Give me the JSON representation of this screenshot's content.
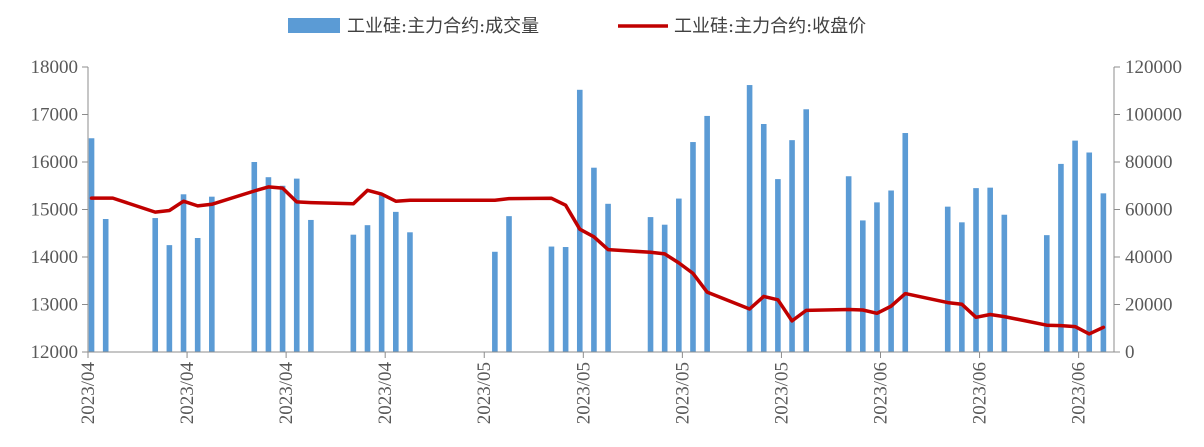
{
  "chart_data": {
    "type": "bar+line",
    "legend": [
      {
        "name": "工业硅:主力合约:成交量",
        "kind": "bar",
        "color": "#5b9bd5"
      },
      {
        "name": "工业硅:主力合约:收盘价",
        "kind": "line",
        "color": "#c00000"
      }
    ],
    "left_axis": {
      "min": 12000,
      "max": 18000,
      "step": 1000,
      "ticks": [
        "12000",
        "13000",
        "14000",
        "15000",
        "16000",
        "17000",
        "18000"
      ]
    },
    "right_axis": {
      "min": 0,
      "max": 120000,
      "step": 20000,
      "ticks": [
        "0",
        "20000",
        "40000",
        "60000",
        "80000",
        "100000",
        "120000"
      ]
    },
    "x_tick_labels": [
      "2023/04",
      "2023/04",
      "2023/04",
      "2023/04",
      "2023/05",
      "2023/05",
      "2023/05",
      "2023/05",
      "2023/06",
      "2023/06",
      "2023/06"
    ],
    "x_tick_indices": [
      0,
      14,
      28,
      42,
      56,
      70,
      84,
      98,
      112,
      126,
      140
    ],
    "n_slots": 145,
    "volume": [
      {
        "i": 0,
        "v": 16500
      },
      {
        "i": 2,
        "v": 14800
      },
      {
        "i": 9,
        "v": 14820
      },
      {
        "i": 11,
        "v": 14250
      },
      {
        "i": 13,
        "v": 15320
      },
      {
        "i": 15,
        "v": 14400
      },
      {
        "i": 17,
        "v": 15270
      },
      {
        "i": 23,
        "v": 16000
      },
      {
        "i": 25,
        "v": 15680
      },
      {
        "i": 27,
        "v": 15500
      },
      {
        "i": 29,
        "v": 15650
      },
      {
        "i": 31,
        "v": 14780
      },
      {
        "i": 37,
        "v": 14470
      },
      {
        "i": 39,
        "v": 14670
      },
      {
        "i": 41,
        "v": 15330
      },
      {
        "i": 43,
        "v": 14950
      },
      {
        "i": 45,
        "v": 14520
      },
      {
        "i": 57,
        "v": 14110
      },
      {
        "i": 59,
        "v": 14860
      },
      {
        "i": 65,
        "v": 14220
      },
      {
        "i": 67,
        "v": 14210
      },
      {
        "i": 69,
        "v": 17520
      },
      {
        "i": 71,
        "v": 15880
      },
      {
        "i": 73,
        "v": 15120
      },
      {
        "i": 79,
        "v": 14840
      },
      {
        "i": 81,
        "v": 14680
      },
      {
        "i": 83,
        "v": 15230
      },
      {
        "i": 85,
        "v": 16420
      },
      {
        "i": 87,
        "v": 16970
      },
      {
        "i": 93,
        "v": 17620
      },
      {
        "i": 95,
        "v": 16800
      },
      {
        "i": 97,
        "v": 15640
      },
      {
        "i": 99,
        "v": 16460
      },
      {
        "i": 101,
        "v": 17110
      },
      {
        "i": 107,
        "v": 15700
      },
      {
        "i": 109,
        "v": 14770
      },
      {
        "i": 111,
        "v": 15150
      },
      {
        "i": 113,
        "v": 15400
      },
      {
        "i": 115,
        "v": 16610
      },
      {
        "i": 121,
        "v": 15060
      },
      {
        "i": 123,
        "v": 14730
      },
      {
        "i": 125,
        "v": 15450
      },
      {
        "i": 127,
        "v": 15460
      },
      {
        "i": 129,
        "v": 14890
      },
      {
        "i": 135,
        "v": 14460
      },
      {
        "i": 137,
        "v": 15960
      },
      {
        "i": 139,
        "v": 16450
      },
      {
        "i": 141,
        "v": 16200
      },
      {
        "i": 143,
        "v": 15340
      }
    ],
    "close_price": [
      {
        "i": 0,
        "v": 64800
      },
      {
        "i": 3,
        "v": 64800
      },
      {
        "i": 9,
        "v": 58900
      },
      {
        "i": 11,
        "v": 59600
      },
      {
        "i": 13,
        "v": 63500
      },
      {
        "i": 15,
        "v": 61500
      },
      {
        "i": 17,
        "v": 62200
      },
      {
        "i": 23,
        "v": 67800
      },
      {
        "i": 25,
        "v": 69500
      },
      {
        "i": 27,
        "v": 69000
      },
      {
        "i": 29,
        "v": 63200
      },
      {
        "i": 31,
        "v": 62900
      },
      {
        "i": 37,
        "v": 62400
      },
      {
        "i": 39,
        "v": 68100
      },
      {
        "i": 41,
        "v": 66500
      },
      {
        "i": 43,
        "v": 63500
      },
      {
        "i": 45,
        "v": 63900
      },
      {
        "i": 57,
        "v": 63900
      },
      {
        "i": 59,
        "v": 64600
      },
      {
        "i": 65,
        "v": 64700
      },
      {
        "i": 67,
        "v": 61800
      },
      {
        "i": 69,
        "v": 51700
      },
      {
        "i": 71,
        "v": 48500
      },
      {
        "i": 73,
        "v": 43100
      },
      {
        "i": 79,
        "v": 42000
      },
      {
        "i": 81,
        "v": 41300
      },
      {
        "i": 83,
        "v": 37500
      },
      {
        "i": 85,
        "v": 33100
      },
      {
        "i": 87,
        "v": 25200
      },
      {
        "i": 93,
        "v": 18100
      },
      {
        "i": 95,
        "v": 23400
      },
      {
        "i": 97,
        "v": 22000
      },
      {
        "i": 99,
        "v": 13100
      },
      {
        "i": 101,
        "v": 17500
      },
      {
        "i": 107,
        "v": 17900
      },
      {
        "i": 109,
        "v": 17700
      },
      {
        "i": 111,
        "v": 16300
      },
      {
        "i": 113,
        "v": 19300
      },
      {
        "i": 115,
        "v": 24600
      },
      {
        "i": 121,
        "v": 20800
      },
      {
        "i": 123,
        "v": 20100
      },
      {
        "i": 125,
        "v": 14600
      },
      {
        "i": 127,
        "v": 15800
      },
      {
        "i": 129,
        "v": 14900
      },
      {
        "i": 135,
        "v": 11300
      },
      {
        "i": 137,
        "v": 11100
      },
      {
        "i": 139,
        "v": 10700
      },
      {
        "i": 141,
        "v": 7600
      },
      {
        "i": 143,
        "v": 10400
      }
    ]
  }
}
